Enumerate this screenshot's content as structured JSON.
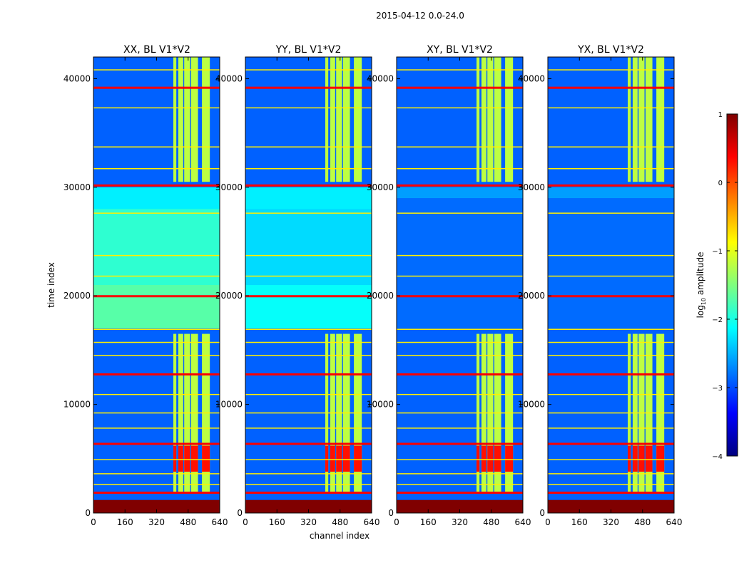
{
  "chart_data": {
    "type": "heatmap",
    "suptitle": "2015-04-12 0.0-24.0",
    "xlabel": "channel index",
    "ylabel": "time index",
    "xlim": [
      0,
      640
    ],
    "ylim": [
      0,
      42000
    ],
    "xticks": [
      0,
      160,
      320,
      480,
      640
    ],
    "yticks": [
      0,
      10000,
      20000,
      30000,
      40000
    ],
    "panels": [
      {
        "title": "XX, BL V1*V2",
        "pol": "XX"
      },
      {
        "title": "YY, BL V1*V2",
        "pol": "YY"
      },
      {
        "title": "XY, BL V1*V2",
        "pol": "XY"
      },
      {
        "title": "YX, BL V1*V2",
        "pol": "YX"
      }
    ],
    "colorbar": {
      "label_main": "log",
      "label_sub": "10",
      "label_tail": " amplitude",
      "min": -4,
      "max": 1,
      "ticks": [
        1,
        0,
        -1,
        -2,
        -3,
        -4
      ],
      "tick_labels": [
        "1",
        "0",
        "−1",
        "−2",
        "−3",
        "−4"
      ],
      "colormap": "jet"
    },
    "rfi_channel_bands": [
      [
        405,
        420
      ],
      [
        430,
        455
      ],
      [
        460,
        490
      ],
      [
        495,
        530
      ],
      [
        550,
        590
      ]
    ],
    "rfi_time_ranges": [
      [
        1800,
        16500
      ],
      [
        30500,
        42000
      ]
    ],
    "saturated_time_range": [
      0,
      1200
    ],
    "flagged_rows": [
      1900,
      2600,
      3600,
      4900,
      6400,
      7800,
      9200,
      10900,
      12800,
      14500,
      15700,
      16900,
      20000,
      21800,
      23700,
      27600,
      30200,
      31700,
      33700,
      37300,
      39200,
      40800
    ]
  }
}
